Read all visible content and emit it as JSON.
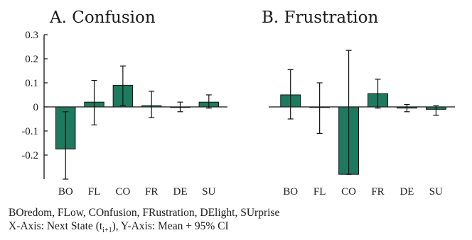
{
  "colors": {
    "bar": "#1e7a5e",
    "bar_edge": "#111111",
    "axis": "#111111"
  },
  "footnotes": {
    "line1": "BOredom, FLow, COnfusion, FRustration, DElight, SUrprise",
    "line2_prefix": "X-Axis: Next State (t",
    "line2_sub": "i+1",
    "line2_suffix": "), Y-Axis: Mean + 95% CI"
  },
  "chart_data": [
    {
      "type": "bar",
      "title": "A. Confusion",
      "categories": [
        "BO",
        "FL",
        "CO",
        "FR",
        "DE",
        "SU"
      ],
      "values": [
        -0.175,
        0.02,
        0.09,
        0.005,
        0.0,
        0.02
      ],
      "ci_low": [
        -0.3,
        -0.075,
        0.005,
        -0.045,
        -0.02,
        -0.005
      ],
      "ci_high": [
        -0.02,
        0.11,
        0.17,
        0.065,
        0.02,
        0.05
      ],
      "yticks": [
        -0.2,
        -0.1,
        0,
        0.1,
        0.2,
        0.3
      ],
      "ytick_labels": [
        "-0.2",
        "-0.1",
        "0",
        "0.1",
        "0.2",
        "0.3"
      ],
      "ylim": [
        -0.3,
        0.3
      ]
    },
    {
      "type": "bar",
      "title": "B. Frustration",
      "categories": [
        "BO",
        "FL",
        "CO",
        "FR",
        "DE",
        "SU"
      ],
      "values": [
        0.05,
        0.0,
        -0.28,
        0.055,
        -0.005,
        -0.01
      ],
      "ci_low": [
        -0.05,
        -0.11,
        -0.28,
        -0.005,
        -0.02,
        -0.035
      ],
      "ci_high": [
        0.155,
        0.1,
        0.235,
        0.115,
        0.01,
        0.005
      ],
      "ylim": [
        -0.3,
        0.3
      ]
    }
  ]
}
